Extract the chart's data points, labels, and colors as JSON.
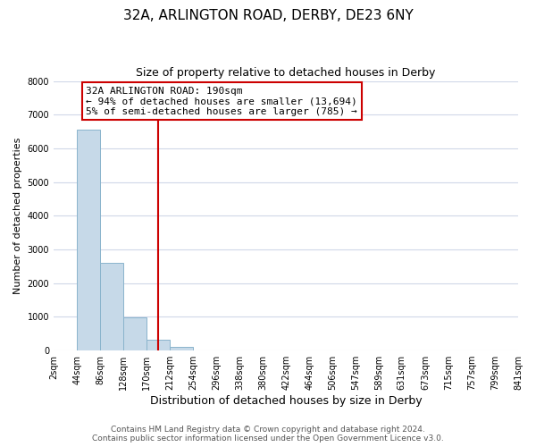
{
  "title": "32A, ARLINGTON ROAD, DERBY, DE23 6NY",
  "subtitle": "Size of property relative to detached houses in Derby",
  "xlabel": "Distribution of detached houses by size in Derby",
  "ylabel": "Number of detached properties",
  "bin_edges": [
    2,
    44,
    86,
    128,
    170,
    212,
    254,
    296,
    338,
    380,
    422,
    464,
    506,
    547,
    589,
    631,
    673,
    715,
    757,
    799,
    841
  ],
  "bar_heights": [
    4,
    6550,
    2600,
    980,
    330,
    120,
    0,
    0,
    0,
    0,
    0,
    0,
    0,
    0,
    0,
    0,
    0,
    0,
    0,
    0
  ],
  "bar_color": "#c6d9e8",
  "bar_edge_color": "#8ab4cc",
  "property_line_x": 190,
  "property_line_color": "#cc0000",
  "annotation_box_text": "32A ARLINGTON ROAD: 190sqm\n← 94% of detached houses are smaller (13,694)\n5% of semi-detached houses are larger (785) →",
  "ylim": [
    0,
    8000
  ],
  "yticks": [
    0,
    1000,
    2000,
    3000,
    4000,
    5000,
    6000,
    7000,
    8000
  ],
  "xtick_labels": [
    "2sqm",
    "44sqm",
    "86sqm",
    "128sqm",
    "170sqm",
    "212sqm",
    "254sqm",
    "296sqm",
    "338sqm",
    "380sqm",
    "422sqm",
    "464sqm",
    "506sqm",
    "547sqm",
    "589sqm",
    "631sqm",
    "673sqm",
    "715sqm",
    "757sqm",
    "799sqm",
    "841sqm"
  ],
  "footer_line1": "Contains HM Land Registry data © Crown copyright and database right 2024.",
  "footer_line2": "Contains public sector information licensed under the Open Government Licence v3.0.",
  "background_color": "#ffffff",
  "grid_color": "#d0d8e8",
  "title_fontsize": 11,
  "subtitle_fontsize": 9,
  "xlabel_fontsize": 9,
  "ylabel_fontsize": 8,
  "annotation_fontsize": 8,
  "footer_fontsize": 6.5,
  "tick_fontsize": 7
}
